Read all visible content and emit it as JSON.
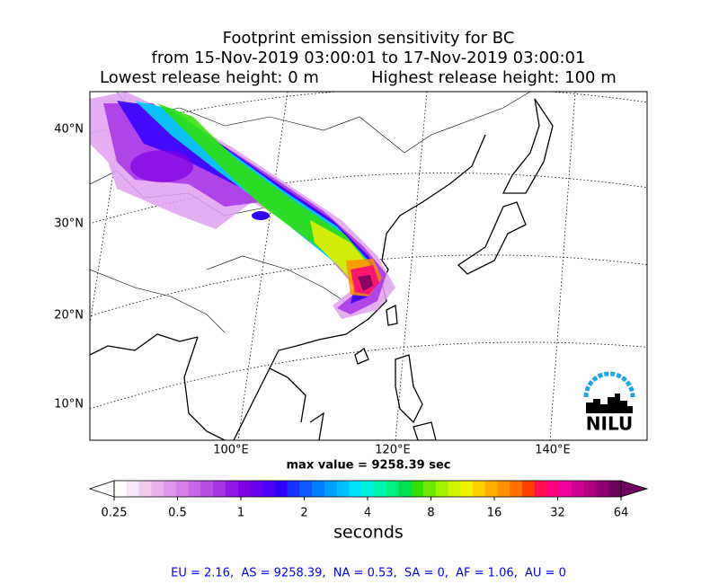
{
  "title": {
    "line1": "Footprint emission sensitivity for BC",
    "line2": "from 15-Nov-2019 03:00:01 to 17-Nov-2019 03:00:01",
    "lowest": "Lowest release height: 0 m",
    "highest": "Highest release height: 100 m"
  },
  "map": {
    "lat_labels": [
      "40°N",
      "30°N",
      "20°N",
      "10°N"
    ],
    "lon_labels": [
      "100°E",
      "120°E",
      "140°E"
    ],
    "max_value": "max value = 9258.39 sec",
    "logo": "NILU"
  },
  "colorbar": {
    "lim": [
      0.25,
      64
    ],
    "log": true,
    "ticks": [
      0.25,
      0.5,
      1,
      2,
      4,
      8,
      16,
      32,
      64
    ],
    "label": "seconds",
    "colors": [
      "#ffffff",
      "#f7e6f7",
      "#f0ccf0",
      "#e8b3ec",
      "#e099e8",
      "#d580e6",
      "#c966e6",
      "#b84de6",
      "#a633e6",
      "#9419e6",
      "#8000e6",
      "#6a00ee",
      "#4d00f5",
      "#3000ff",
      "#1a33ff",
      "#0d5cff",
      "#0080ff",
      "#00a0ff",
      "#00c0ff",
      "#00e0ff",
      "#00f0e0",
      "#00f5b0",
      "#00f080",
      "#00e050",
      "#30e000",
      "#70e800",
      "#a0f000",
      "#d0f500",
      "#f0f000",
      "#ffd000",
      "#ffb000",
      "#ff9000",
      "#ff7000",
      "#ff4000",
      "#ff1050",
      "#ff0080",
      "#f000a0",
      "#d00090",
      "#b00080",
      "#900070",
      "#700060"
    ]
  },
  "footer": "EU = 2.16,  AS = 9258.39,  NA = 0.53,  SA = 0,  AF = 1.06,  AU = 0"
}
